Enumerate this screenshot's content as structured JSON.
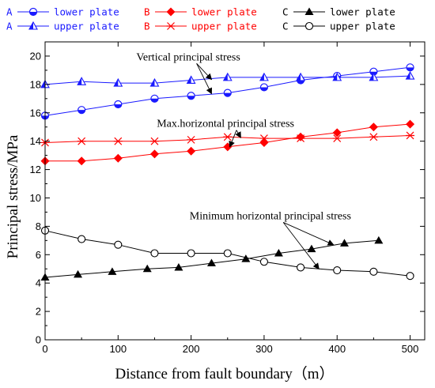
{
  "chart_data": {
    "type": "line",
    "xlabel": "Distance from fault boundary（m）",
    "ylabel": "Principal stress/MPa",
    "xlim": [
      0,
      520
    ],
    "ylim": [
      0,
      21
    ],
    "xticks": [
      0,
      100,
      200,
      300,
      400,
      500
    ],
    "yticks": [
      0,
      2,
      4,
      6,
      8,
      10,
      12,
      14,
      16,
      18,
      20
    ],
    "grid": false,
    "legend_position": "top",
    "series": [
      {
        "name": "lower plate",
        "group": "A",
        "color": "#1a1aff",
        "marker": "half-circle",
        "x": [
          0,
          50,
          100,
          150,
          200,
          250,
          300,
          350,
          400,
          450,
          500
        ],
        "y": [
          15.8,
          16.2,
          16.6,
          17.0,
          17.2,
          17.4,
          17.8,
          18.3,
          18.6,
          18.9,
          19.2
        ]
      },
      {
        "name": "upper plate",
        "group": "A",
        "color": "#1a1aff",
        "marker": "half-triangle",
        "x": [
          0,
          50,
          100,
          150,
          200,
          250,
          300,
          350,
          400,
          450,
          500
        ],
        "y": [
          18.0,
          18.2,
          18.1,
          18.1,
          18.3,
          18.5,
          18.5,
          18.5,
          18.5,
          18.5,
          18.6
        ]
      },
      {
        "name": "lower plate",
        "group": "B",
        "color": "#ff0000",
        "marker": "diamond",
        "x": [
          0,
          50,
          100,
          150,
          200,
          250,
          300,
          350,
          400,
          450,
          500
        ],
        "y": [
          12.6,
          12.6,
          12.8,
          13.1,
          13.3,
          13.6,
          13.9,
          14.3,
          14.6,
          15.0,
          15.2
        ]
      },
      {
        "name": "upper plate",
        "group": "B",
        "color": "#ff0000",
        "marker": "asterisk",
        "x": [
          0,
          50,
          100,
          150,
          200,
          250,
          300,
          350,
          400,
          450,
          500
        ],
        "y": [
          13.9,
          14.0,
          14.0,
          14.0,
          14.1,
          14.3,
          14.2,
          14.2,
          14.2,
          14.3,
          14.4
        ]
      },
      {
        "name": "lower plate",
        "group": "C",
        "color": "#000000",
        "marker": "filled-triangle",
        "x": [
          0,
          45,
          92,
          140,
          183,
          228,
          275,
          320,
          365,
          410,
          457
        ],
        "y": [
          4.4,
          4.6,
          4.8,
          5.0,
          5.1,
          5.4,
          5.7,
          6.1,
          6.4,
          6.8,
          7.0
        ]
      },
      {
        "name": "upper plate",
        "group": "C",
        "color": "#000000",
        "marker": "open-circle",
        "x": [
          0,
          50,
          100,
          150,
          200,
          250,
          300,
          350,
          400,
          450,
          500
        ],
        "y": [
          7.7,
          7.1,
          6.7,
          6.1,
          6.1,
          6.1,
          5.5,
          5.1,
          4.9,
          4.8,
          4.5
        ]
      }
    ],
    "annotations": [
      {
        "text": "Vertical principal stress",
        "x": 125,
        "y": 19.7,
        "arrows_to": [
          [
            228,
            18.35
          ],
          [
            228,
            17.35
          ]
        ]
      },
      {
        "text": "Max.horizontal principal stress",
        "x": 153,
        "y": 15.0,
        "arrows_to": [
          [
            268,
            14.25
          ],
          [
            253,
            13.6
          ]
        ]
      },
      {
        "text": "Minimum horizontal principal stress",
        "x": 198,
        "y": 8.5,
        "arrows_to": [
          [
            395,
            6.7
          ],
          [
            375,
            5.0
          ]
        ]
      }
    ]
  }
}
